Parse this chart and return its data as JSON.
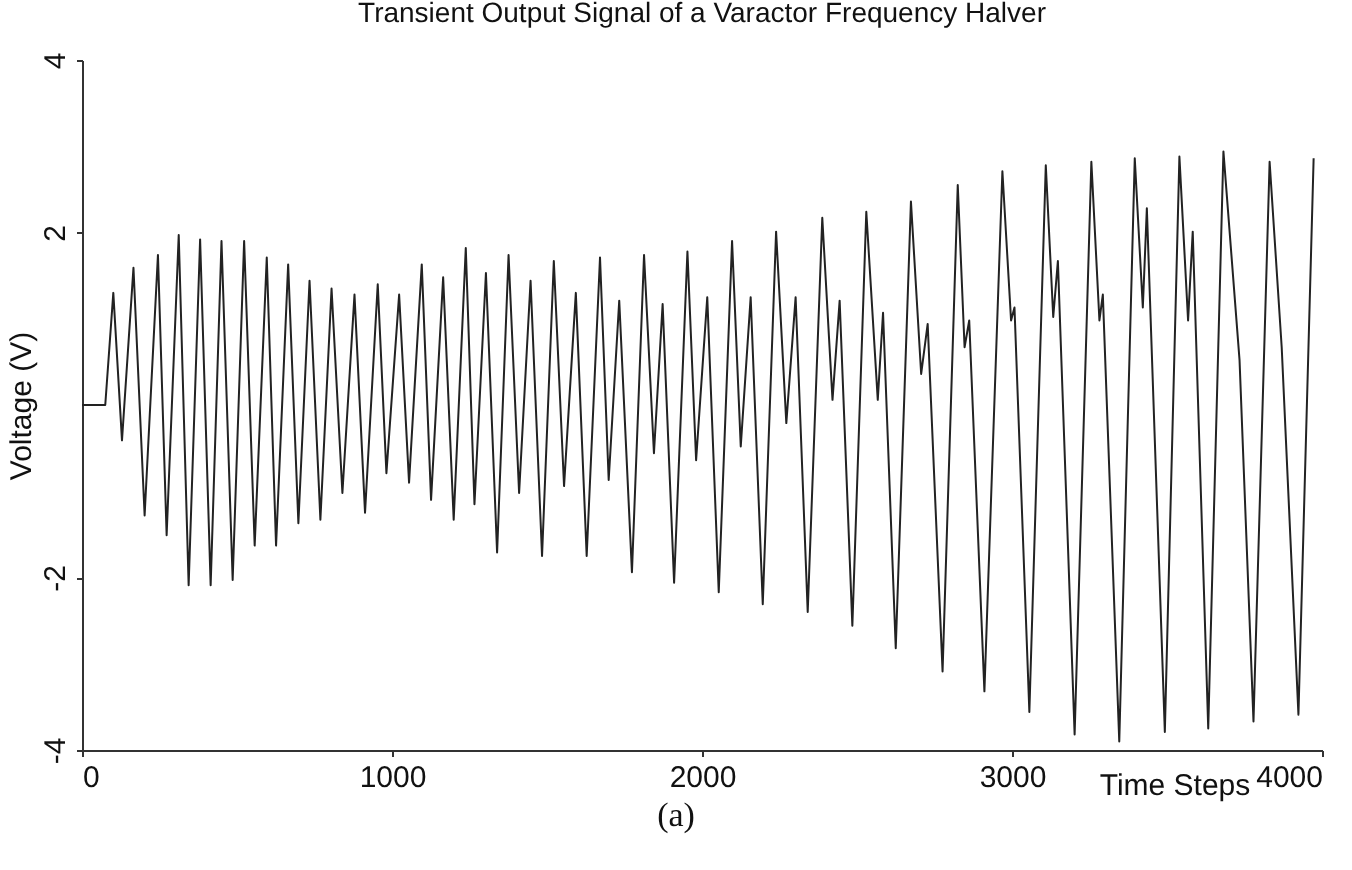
{
  "chart_data": {
    "type": "line",
    "title": "Transient Output Signal of a Varactor Frequency Halver",
    "xlabel": "Time Steps",
    "ylabel": "Voltage (V)",
    "annotations": [
      "(a)"
    ],
    "x": [
      0,
      75,
      101,
      129,
      166,
      202,
      245,
      273,
      312,
      344,
      381,
      415,
      450,
      486,
      523,
      557,
      596,
      626,
      665,
      698,
      734,
      769,
      805,
      840,
      879,
      913,
      954,
      982,
      1023,
      1055,
      1096,
      1126,
      1165,
      1199,
      1238,
      1266,
      1303,
      1339,
      1376,
      1410,
      1447,
      1484,
      1522,
      1555,
      1593,
      1628,
      1671,
      1699,
      1733,
      1774,
      1813,
      1845,
      1873,
      1910,
      1953,
      1981,
      2017,
      2054,
      2097,
      2125,
      2157,
      2196,
      2239,
      2272,
      2302,
      2341,
      2388,
      2421,
      2444,
      2485,
      2530,
      2567,
      2584,
      2625,
      2674,
      2707,
      2728,
      2776,
      2825,
      2847,
      2862,
      2911,
      2969,
      2997,
      3008,
      3056,
      3109,
      3133,
      3148,
      3202,
      3256,
      3282,
      3293,
      3346,
      3396,
      3422,
      3435,
      3493,
      3540,
      3568,
      3583,
      3633,
      3682,
      3734,
      3779,
      3831,
      3870,
      3924,
      3973
    ],
    "series": [
      {
        "color": "#222222",
        "values": [
          0,
          0,
          1.3,
          -0.41,
          1.59,
          -1.28,
          1.74,
          -1.51,
          1.97,
          -2.09,
          1.92,
          -2.09,
          1.9,
          -2.03,
          1.9,
          -1.63,
          1.71,
          -1.63,
          1.63,
          -1.37,
          1.44,
          -1.33,
          1.35,
          -1.02,
          1.28,
          -1.25,
          1.4,
          -0.79,
          1.28,
          -0.9,
          1.63,
          -1.1,
          1.48,
          -1.33,
          1.82,
          -1.15,
          1.53,
          -1.71,
          1.74,
          -1.02,
          1.44,
          -1.75,
          1.67,
          -0.94,
          1.3,
          -1.75,
          1.71,
          -0.87,
          1.21,
          -1.94,
          1.74,
          -0.56,
          1.17,
          -2.06,
          1.78,
          -0.64,
          1.25,
          -2.17,
          1.9,
          -0.48,
          1.25,
          -2.31,
          2.01,
          -0.21,
          1.25,
          -2.4,
          2.17,
          0.06,
          1.21,
          -2.56,
          2.24,
          0.06,
          1.07,
          -2.82,
          2.36,
          0.36,
          0.94,
          -3.09,
          2.55,
          0.67,
          0.98,
          -3.32,
          2.71,
          0.98,
          1.13,
          -3.56,
          2.78,
          1.02,
          1.67,
          -3.82,
          2.82,
          0.98,
          1.28,
          -3.9,
          2.86,
          1.13,
          2.28,
          -3.79,
          2.88,
          0.98,
          2.01,
          -3.75,
          2.94,
          0.52,
          -3.67,
          2.82,
          0.67,
          -3.59,
          2.86
        ]
      }
    ],
    "xlim": [
      0,
      4000
    ],
    "xticks": [
      0,
      1000,
      2000,
      3000,
      4000
    ],
    "ylim": [
      -4,
      4
    ],
    "yticks": [
      4,
      2,
      -2,
      -4
    ]
  }
}
